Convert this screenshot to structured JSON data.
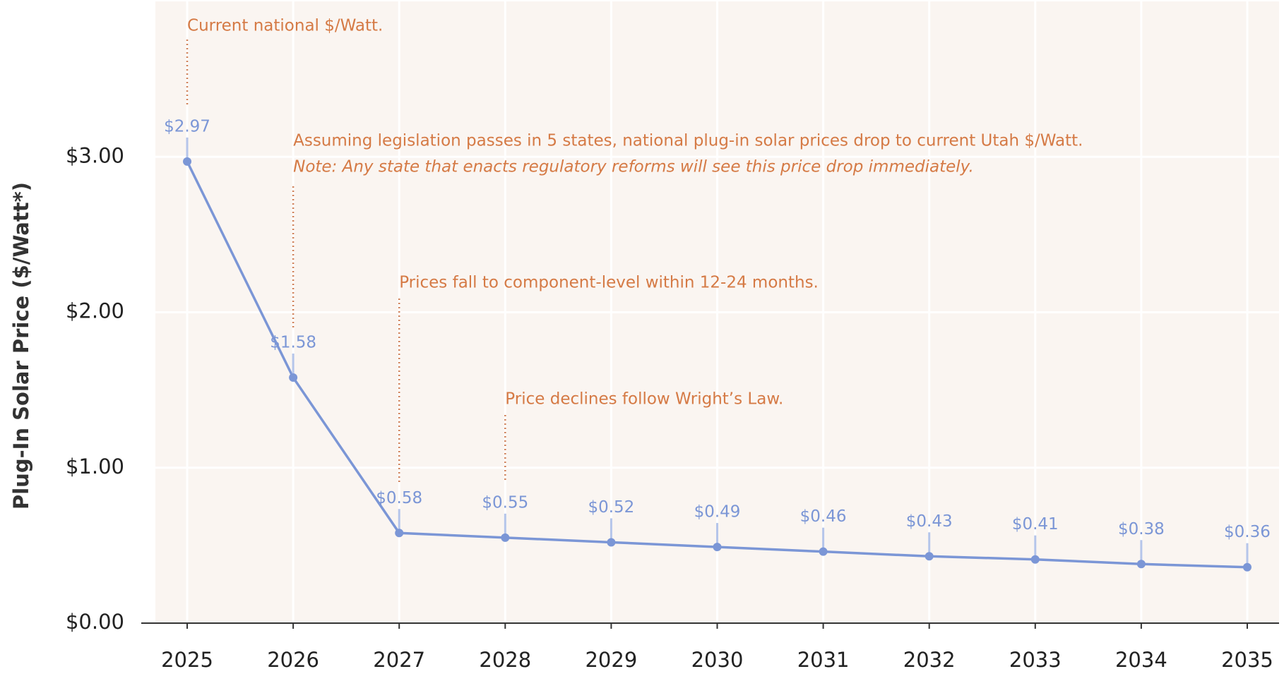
{
  "chart_data": {
    "type": "line",
    "y_label": "Plug-In Solar Price ($/Watt*)",
    "x": [
      2025,
      2026,
      2027,
      2028,
      2029,
      2030,
      2031,
      2032,
      2033,
      2034,
      2035
    ],
    "values": [
      2.97,
      1.58,
      0.58,
      0.55,
      0.52,
      0.49,
      0.46,
      0.43,
      0.41,
      0.38,
      0.36
    ],
    "value_labels": [
      "$2.97",
      "$1.58",
      "$0.58",
      "$0.55",
      "$0.52",
      "$0.49",
      "$0.46",
      "$0.43",
      "$0.41",
      "$0.38",
      "$0.36"
    ],
    "color": "#7b96d6",
    "xlim": [
      2024.7,
      2035.3
    ],
    "xticks": [
      2025,
      2026,
      2027,
      2028,
      2029,
      2030,
      2031,
      2032,
      2033,
      2034,
      2035
    ],
    "ylim": [
      0,
      4
    ],
    "yticks": [
      {
        "value": 0,
        "label": "$0.00"
      },
      {
        "value": 1,
        "label": "$1.00"
      },
      {
        "value": 2,
        "label": "$2.00"
      },
      {
        "value": 3,
        "label": "$3.00"
      }
    ],
    "grid": true,
    "annotations": [
      {
        "x": 2025,
        "text": "Current national $/Watt."
      },
      {
        "x": 2026,
        "text": "Assuming legislation passes in 5 states, national plug-in solar prices drop to current Utah $/Watt.",
        "note": "Note: Any state that enacts regulatory reforms will see this price drop immediately."
      },
      {
        "x": 2027,
        "text": "Prices fall to component-level within 12-24 months."
      },
      {
        "x": 2028,
        "text": "Price declines follow Wright’s Law."
      }
    ]
  }
}
